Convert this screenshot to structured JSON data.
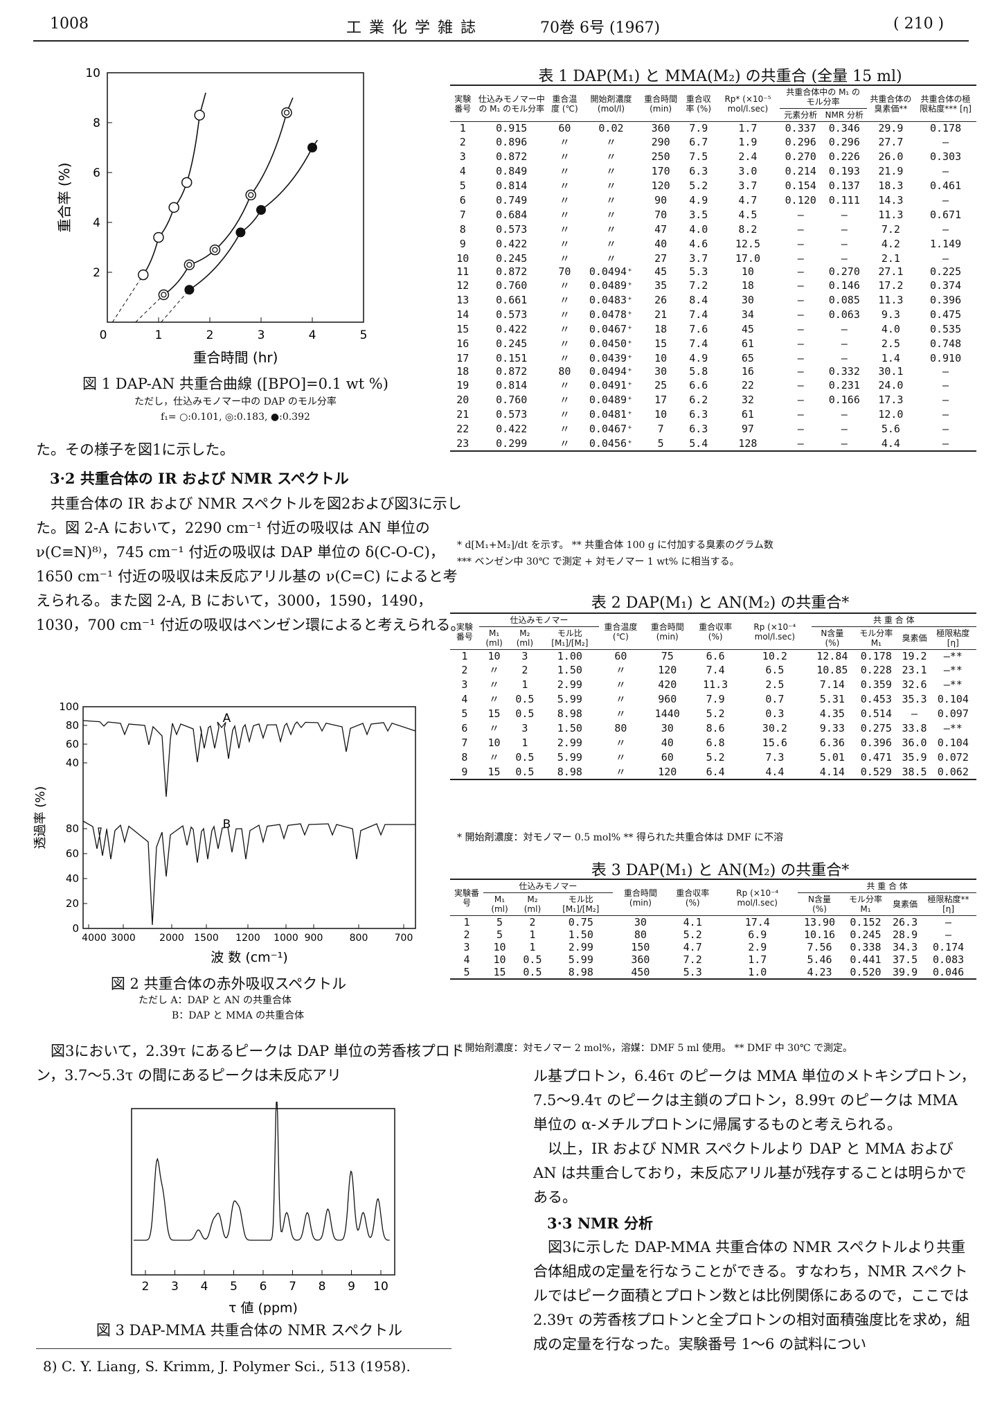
{
  "header": {
    "page_left": "1008",
    "journal": "工 業 化 学 雑 誌",
    "volume": "70巻 6号 (1967)",
    "page_right": "( 210 )"
  },
  "fig1": {
    "caption": "図 1  DAP-AN 共重合曲線 ([BPO]=0.1 wt %)",
    "note1": "ただし，仕込みモノマー中の DAP のモル分率",
    "note2": "f₁= ○:0.101,  ◎:0.183,  ●:0.392",
    "ylabel": "重合率 (%)",
    "xlabel": "重合時間 (hr)",
    "yticks": [
      "0",
      "2",
      "4",
      "6",
      "8",
      "10"
    ],
    "xticks": [
      "1",
      "2",
      "3",
      "4",
      "5"
    ],
    "origin_label": "0",
    "chart_data": {
      "type": "scatter",
      "xlabel": "重合時間 (hr)",
      "ylabel": "重合率 (%)",
      "xlim": [
        0,
        5
      ],
      "ylim": [
        0,
        10
      ],
      "series": [
        {
          "marker": "open-circle",
          "x": [
            0.7,
            1.0,
            1.3,
            1.55,
            1.8
          ],
          "y": [
            1.9,
            3.4,
            4.6,
            5.6,
            8.3
          ]
        },
        {
          "marker": "double-circle",
          "x": [
            1.1,
            1.6,
            2.1,
            2.8,
            3.5
          ],
          "y": [
            1.1,
            2.3,
            2.9,
            5.1,
            8.4
          ]
        },
        {
          "marker": "filled-circle",
          "x": [
            1.6,
            2.6,
            3.0,
            4.0
          ],
          "y": [
            1.3,
            3.6,
            4.5,
            7.0
          ]
        }
      ]
    }
  },
  "fig2": {
    "caption": "図 2  共重合体の赤外吸収スペクトル",
    "note1": "ただし  A：DAP と AN の共重合体",
    "note2": "B：DAP と MMA の共重合体",
    "ylabel": "透過率 (%)",
    "xlabel": "波  数  (cm⁻¹)",
    "label_a": "A",
    "label_b": "B",
    "yticks_top": [
      "100",
      "80",
      "60",
      "40"
    ],
    "yticks_bot": [
      "80",
      "60",
      "40",
      "20",
      "0"
    ],
    "xticks": [
      "4000",
      "3000",
      "2000",
      "1500",
      "1200",
      "1000",
      "900",
      "800",
      "700"
    ],
    "chart_data": {
      "type": "line",
      "xlabel": "波数 (cm⁻¹)",
      "ylabel": "透過率 (%)",
      "series_labels": [
        "A",
        "B"
      ]
    }
  },
  "fig3": {
    "caption": "図 3  DAP-MMA 共重合体の NMR スペクトル",
    "xlabel": "τ 値 (ppm)",
    "xticks": [
      "2",
      "3",
      "4",
      "5",
      "6",
      "7",
      "8",
      "9",
      "10"
    ],
    "chart_data": {
      "type": "line",
      "xlabel": "τ 値 (ppm)",
      "xlim": [
        2,
        10
      ]
    }
  },
  "left_text": {
    "p1": "た。その様子を図1に示した。",
    "h32": "3·2  共重合体の IR および NMR スペクトル",
    "p2": "共重合体の IR および NMR スペクトルを図2および図3に示した。図 2-A において，2290 cm⁻¹ 付近の吸収は AN 単位の ν(C≡N)⁸⁾，745 cm⁻¹ 付近の吸収は DAP 単位の δ(C-O-C)，1650 cm⁻¹ 付近の吸収は未反応アリル基の ν(C=C) によると考えられる。また図 2-A, B において，3000，1590，1490，1030，700 cm⁻¹ 付近の吸収はベンゼン環によると考えられる。",
    "p3": "図3において，2.39τ にあるピークは DAP 単位の芳香核プロトン，3.7～5.3τ の間にあるピークは未反応アリ",
    "ref": "8)  C. Y. Liang, S. Krimm, J. Polymer Sci., 513 (1958)."
  },
  "right_text": {
    "p1": "ル基プロトン，6.46τ のピークは MMA 単位のメトキシプロトン，7.5～9.4τ のピークは主鎖のプロトン，8.99τ のピークは MMA 単位の α-メチルプロトンに帰属するものと考えられる。",
    "p2": "以上，IR および NMR スペクトルより DAP と MMA および AN は共重合しており，未反応アリル基が残存することは明らかである。",
    "h33": "3·3  NMR 分析",
    "p3": "図3に示した DAP-MMA 共重合体の NMR スペクトルより共重合体組成の定量を行なうことができる。すなわち，NMR スペクトルではピーク面積とプロトン数とは比例関係にあるので，ここでは 2.39τ の芳香核プロトンと全プロトンの相対面積強度比を求め，組成の定量を行なった。実験番号 1～6 の試料につい"
  },
  "table1": {
    "caption": "表 1  DAP(M₁) と MMA(M₂) の共重合 (全量 15 ml)",
    "headers": [
      "実験番号",
      "仕込みモノマー中の M₁ のモル分率",
      "重合温度 (℃)",
      "開始剤濃度 (mol/l)",
      "重合時間 (min)",
      "重合収率 (%)",
      "Rp* (×10⁻⁵ mol/l.sec)",
      "元素分析",
      "NMR 分析",
      "共重合体の臭素価**",
      "共重合体の極限粘度*** [η]"
    ],
    "group": "共重合体中の M₁ のモル分率",
    "rows": [
      [
        "1",
        "0.915",
        "60",
        "0.02",
        "360",
        "7.9",
        "1.7",
        "0.337",
        "0.346",
        "29.9",
        "0.178"
      ],
      [
        "2",
        "0.896",
        "〃",
        "〃",
        "290",
        "6.7",
        "1.9",
        "0.296",
        "0.296",
        "27.7",
        "—"
      ],
      [
        "3",
        "0.872",
        "〃",
        "〃",
        "250",
        "7.5",
        "2.4",
        "0.270",
        "0.226",
        "26.0",
        "0.303"
      ],
      [
        "4",
        "0.849",
        "〃",
        "〃",
        "170",
        "6.3",
        "3.0",
        "0.214",
        "0.193",
        "21.9",
        "—"
      ],
      [
        "5",
        "0.814",
        "〃",
        "〃",
        "120",
        "5.2",
        "3.7",
        "0.154",
        "0.137",
        "18.3",
        "0.461"
      ],
      [
        "6",
        "0.749",
        "〃",
        "〃",
        "90",
        "4.9",
        "4.7",
        "0.120",
        "0.111",
        "14.3",
        "—"
      ],
      [
        "7",
        "0.684",
        "〃",
        "〃",
        "70",
        "3.5",
        "4.5",
        "—",
        "—",
        "11.3",
        "0.671"
      ],
      [
        "8",
        "0.573",
        "〃",
        "〃",
        "47",
        "4.0",
        "8.2",
        "—",
        "—",
        "7.2",
        "—"
      ],
      [
        "9",
        "0.422",
        "〃",
        "〃",
        "40",
        "4.6",
        "12.5",
        "—",
        "—",
        "4.2",
        "1.149"
      ],
      [
        "10",
        "0.245",
        "〃",
        "〃",
        "27",
        "3.7",
        "17.0",
        "—",
        "—",
        "2.1",
        "—"
      ],
      [
        "11",
        "0.872",
        "70",
        "0.0494⁺",
        "45",
        "5.3",
        "10",
        "—",
        "0.270",
        "27.1",
        "0.225"
      ],
      [
        "12",
        "0.760",
        "〃",
        "0.0489⁺",
        "35",
        "7.2",
        "18",
        "—",
        "0.146",
        "17.2",
        "0.374"
      ],
      [
        "13",
        "0.661",
        "〃",
        "0.0483⁺",
        "26",
        "8.4",
        "30",
        "—",
        "0.085",
        "11.3",
        "0.396"
      ],
      [
        "14",
        "0.573",
        "〃",
        "0.0478⁺",
        "21",
        "7.4",
        "34",
        "—",
        "0.063",
        "9.3",
        "0.475"
      ],
      [
        "15",
        "0.422",
        "〃",
        "0.0467⁺",
        "18",
        "7.6",
        "45",
        "—",
        "—",
        "4.0",
        "0.535"
      ],
      [
        "16",
        "0.245",
        "〃",
        "0.0450⁺",
        "15",
        "7.4",
        "61",
        "—",
        "—",
        "2.5",
        "0.748"
      ],
      [
        "17",
        "0.151",
        "〃",
        "0.0439⁺",
        "10",
        "4.9",
        "65",
        "—",
        "—",
        "1.4",
        "0.910"
      ],
      [
        "18",
        "0.872",
        "80",
        "0.0494⁺",
        "30",
        "5.8",
        "16",
        "—",
        "0.332",
        "30.1",
        "—"
      ],
      [
        "19",
        "0.814",
        "〃",
        "0.0491⁺",
        "25",
        "6.6",
        "22",
        "—",
        "0.231",
        "24.0",
        "—"
      ],
      [
        "20",
        "0.760",
        "〃",
        "0.0489⁺",
        "17",
        "6.2",
        "32",
        "—",
        "0.166",
        "17.3",
        "—"
      ],
      [
        "21",
        "0.573",
        "〃",
        "0.0481⁺",
        "10",
        "6.3",
        "61",
        "—",
        "—",
        "12.0",
        "—"
      ],
      [
        "22",
        "0.422",
        "〃",
        "0.0467⁺",
        "7",
        "6.3",
        "97",
        "—",
        "—",
        "5.6",
        "—"
      ],
      [
        "23",
        "0.299",
        "〃",
        "0.0456⁺",
        "5",
        "5.4",
        "128",
        "—",
        "—",
        "4.4",
        "—"
      ]
    ],
    "fn1": "* d[M₁+M₂]/dt を示す。  ** 共重合体 100 g に付加する臭素のグラム数",
    "fn2": "*** ベンゼン中 30℃ で測定     + 対モノマー 1 wt% に相当する。"
  },
  "table2": {
    "caption": "表 2  DAP(M₁) と AN(M₂) の共重合*",
    "group_left": "仕込みモノマー",
    "group_right": "共 重 合 体",
    "headers": [
      "実験番号",
      "M₁ (ml)",
      "M₂ (ml)",
      "モル比 [M₁]/[M₂]",
      "重合温度 (℃)",
      "重合時間 (min)",
      "重合収率 (%)",
      "Rp (×10⁻⁴ mol/l.sec)",
      "N含量 (%)",
      "モル分率 M₁",
      "臭素価",
      "極限粘度 [η]"
    ],
    "rows": [
      [
        "1",
        "10",
        "3",
        "1.00",
        "60",
        "75",
        "6.6",
        "10.2",
        "12.84",
        "0.178",
        "19.2",
        "—**"
      ],
      [
        "2",
        "〃",
        "2",
        "1.50",
        "〃",
        "120",
        "7.4",
        "6.5",
        "10.85",
        "0.228",
        "23.1",
        "—**"
      ],
      [
        "3",
        "〃",
        "1",
        "2.99",
        "〃",
        "420",
        "11.3",
        "2.5",
        "7.14",
        "0.359",
        "32.6",
        "—**"
      ],
      [
        "4",
        "〃",
        "0.5",
        "5.99",
        "〃",
        "960",
        "7.9",
        "0.7",
        "5.31",
        "0.453",
        "35.3",
        "0.104"
      ],
      [
        "5",
        "15",
        "0.5",
        "8.98",
        "〃",
        "1440",
        "5.2",
        "0.3",
        "4.35",
        "0.514",
        "—",
        "0.097"
      ],
      [
        "6",
        "〃",
        "3",
        "1.50",
        "80",
        "30",
        "8.6",
        "30.2",
        "9.33",
        "0.275",
        "33.8",
        "—**"
      ],
      [
        "7",
        "10",
        "1",
        "2.99",
        "〃",
        "40",
        "6.8",
        "15.6",
        "6.36",
        "0.396",
        "36.0",
        "0.104"
      ],
      [
        "8",
        "〃",
        "0.5",
        "5.99",
        "〃",
        "60",
        "5.2",
        "7.3",
        "5.01",
        "0.471",
        "35.9",
        "0.072"
      ],
      [
        "9",
        "15",
        "0.5",
        "8.98",
        "〃",
        "120",
        "6.4",
        "4.4",
        "4.14",
        "0.529",
        "38.5",
        "0.062"
      ]
    ],
    "fn": "* 開始剤濃度：対モノマー 0.5 mol%    ** 得られた共重合体は DMF に不溶"
  },
  "table3": {
    "caption": "表 3  DAP(M₁) と AN(M₂) の共重合*",
    "group_left": "仕込みモノマー",
    "group_right": "共 重 合 体",
    "headers": [
      "実験番号",
      "M₁ (ml)",
      "M₂ (ml)",
      "モル比 [M₁]/[M₂]",
      "重合時間 (min)",
      "重合収率 (%)",
      "Rp (×10⁻⁴ mol/l.sec)",
      "N含量 (%)",
      "モル分率 M₁",
      "臭素価",
      "極限粘度** [η]"
    ],
    "rows": [
      [
        "1",
        "5",
        "2",
        "0.75",
        "30",
        "4.1",
        "17.4",
        "13.90",
        "0.152",
        "26.3",
        "—"
      ],
      [
        "2",
        "5",
        "1",
        "1.50",
        "80",
        "5.2",
        "6.9",
        "10.16",
        "0.245",
        "28.9",
        "—"
      ],
      [
        "3",
        "10",
        "1",
        "2.99",
        "150",
        "4.7",
        "2.9",
        "7.56",
        "0.338",
        "34.3",
        "0.174"
      ],
      [
        "4",
        "10",
        "0.5",
        "5.99",
        "360",
        "7.2",
        "1.7",
        "5.46",
        "0.441",
        "37.5",
        "0.083"
      ],
      [
        "5",
        "15",
        "0.5",
        "8.98",
        "450",
        "5.3",
        "1.0",
        "4.23",
        "0.520",
        "39.9",
        "0.046"
      ]
    ],
    "fn": "* 開始剤濃度：対モノマー 2 mol%，溶媒：DMF 5 ml 使用。 ** DMF 中 30℃ で測定。"
  }
}
